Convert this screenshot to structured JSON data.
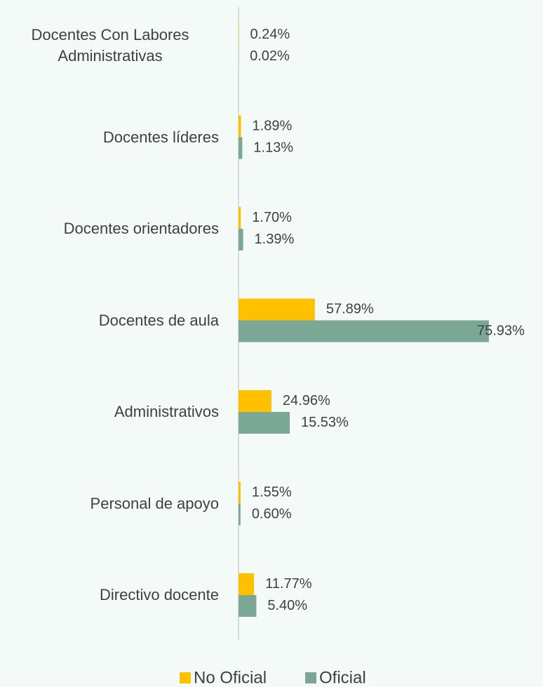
{
  "chart_data": {
    "type": "hbar",
    "categories": [
      "Docentes Con Labores Administrativas",
      "Docentes líderes",
      "Docentes orientadores",
      "Docentes de aula",
      "Administrativos",
      "Personal de apoyo",
      "Directivo docente"
    ],
    "series": [
      {
        "name": "No Oficial",
        "color": "#ffc000",
        "values": [
          0.24,
          1.89,
          1.7,
          57.89,
          24.96,
          1.55,
          11.77
        ],
        "value_labels": [
          "0.24%",
          "1.89%",
          "1.70%",
          "57.89%",
          "24.96%",
          "1.55%",
          "11.77%"
        ]
      },
      {
        "name": "Oficial",
        "color": "#7aa895",
        "axis": "x2",
        "values": [
          0.02,
          1.13,
          1.39,
          75.93,
          15.53,
          0.6,
          5.4
        ],
        "value_labels": [
          "0.02%",
          "1.13%",
          "1.39%",
          "75.93%",
          "15.53%",
          "0.60%",
          "5.40%"
        ]
      }
    ],
    "xlim": [
      0,
      200
    ],
    "x2lim": [
      0,
      80
    ],
    "legend": "bottom"
  }
}
